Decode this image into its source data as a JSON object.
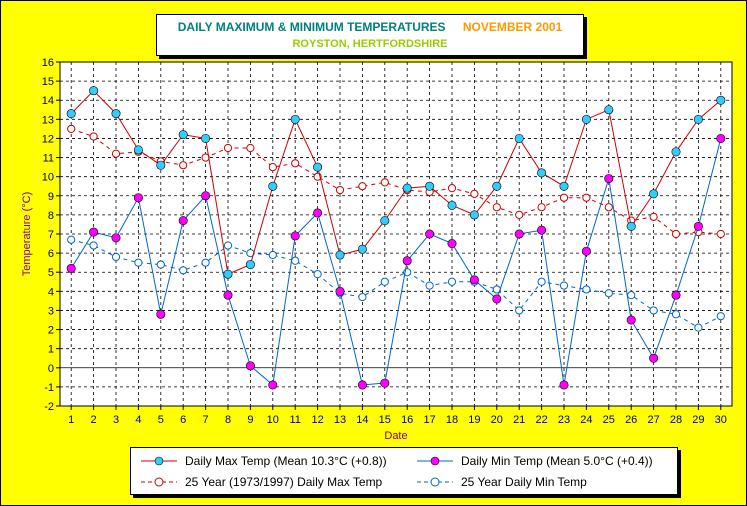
{
  "chart_data": {
    "type": "line",
    "title": "DAILY MAXIMUM &  MINIMUM  TEMPERATURES",
    "title_month": "NOVEMBER 2001",
    "subtitle": "ROYSTON, HERTFORDSHIRE",
    "xlabel": "Date",
    "ylabel": "Temperature (°C)",
    "ylim": [
      -2,
      16
    ],
    "yticks": [
      -2,
      -1,
      0,
      1,
      2,
      3,
      4,
      5,
      6,
      7,
      8,
      9,
      10,
      11,
      12,
      13,
      14,
      15,
      16
    ],
    "x": [
      1,
      2,
      3,
      4,
      5,
      6,
      7,
      8,
      9,
      10,
      11,
      12,
      13,
      14,
      15,
      16,
      17,
      18,
      19,
      20,
      21,
      22,
      23,
      24,
      25,
      26,
      27,
      28,
      29,
      30
    ],
    "grid": true,
    "legend_position": "bottom",
    "colors": {
      "background": "#ffff00",
      "plot_background": "#ffffff",
      "max_line": "#cc0000",
      "min_line": "#0066cc",
      "max_marker": "#33ccff",
      "min_marker": "#ff00ff",
      "axis_text": "#800080",
      "tick_text": "#000080"
    },
    "series": [
      {
        "name": "Daily Max Temp (Mean 10.3°C (+0.8))",
        "style": "solid",
        "color": "#cc0000",
        "marker_color": "#33ccff",
        "values": [
          13.3,
          14.5,
          13.3,
          11.4,
          10.6,
          12.2,
          12.0,
          4.9,
          5.4,
          9.5,
          13.0,
          10.5,
          5.9,
          6.2,
          7.7,
          9.4,
          9.5,
          8.5,
          8.0,
          9.5,
          12.0,
          10.2,
          9.5,
          13.0,
          13.5,
          7.4,
          9.1,
          11.3,
          13.0,
          14.0
        ]
      },
      {
        "name": "Daily Min Temp (Mean 5.0°C (+0.4))",
        "style": "solid",
        "color": "#0066cc",
        "marker_color": "#ff00ff",
        "values": [
          5.2,
          7.1,
          6.8,
          8.9,
          2.8,
          7.7,
          9.0,
          3.8,
          0.1,
          -0.9,
          6.9,
          8.1,
          4.0,
          -0.9,
          -0.8,
          5.6,
          7.0,
          6.5,
          4.6,
          3.6,
          7.0,
          7.2,
          -0.9,
          6.1,
          9.9,
          2.5,
          0.5,
          3.8,
          7.4,
          12.0
        ]
      },
      {
        "name": "25 Year (1973/1997) Daily Max Temp",
        "style": "dashed",
        "color": "#cc0000",
        "marker_color": "#ffffff",
        "values": [
          12.5,
          12.1,
          11.2,
          11.3,
          10.8,
          10.6,
          11.0,
          11.5,
          11.5,
          10.5,
          10.7,
          10.0,
          9.3,
          9.5,
          9.7,
          9.3,
          9.2,
          9.4,
          9.1,
          8.4,
          8.0,
          8.4,
          8.9,
          8.9,
          8.4,
          7.7,
          7.9,
          7.0,
          7.1,
          7.0
        ]
      },
      {
        "name": "25 Year Daily Min Temp",
        "style": "dashed",
        "color": "#0066cc",
        "marker_color": "#ffffff",
        "values": [
          6.7,
          6.4,
          5.8,
          5.5,
          5.4,
          5.1,
          5.5,
          6.4,
          6.0,
          5.9,
          5.6,
          4.9,
          3.9,
          3.7,
          4.5,
          5.0,
          4.3,
          4.5,
          4.5,
          4.1,
          3.0,
          4.5,
          4.3,
          4.1,
          3.9,
          3.8,
          3.0,
          2.8,
          2.1,
          2.7
        ]
      }
    ]
  }
}
